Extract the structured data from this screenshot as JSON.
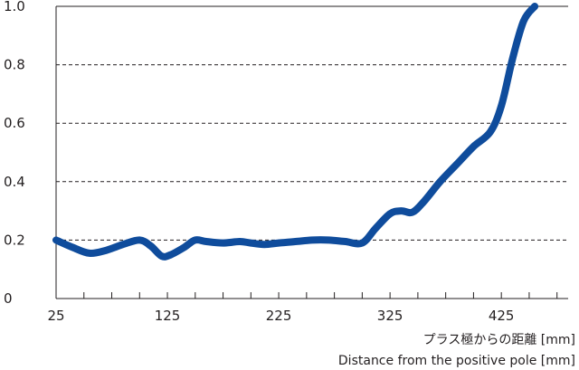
{
  "chart_data": {
    "type": "line",
    "xlabel_ja": "プラス極からの距離 [mm]",
    "xlabel_en": "Distance from the positive pole [mm]",
    "ylabel": "",
    "xlim": [
      25,
      485
    ],
    "ylim": [
      0,
      1.0
    ],
    "x_ticks": [
      25,
      125,
      225,
      325,
      425
    ],
    "x_minor_step": 25,
    "y_ticks": [
      0,
      0.2,
      0.4,
      0.6,
      0.8,
      1.0
    ],
    "y_tick_labels": [
      "0",
      "0.2",
      "0.4",
      "0.6",
      "0.8",
      "1.0"
    ],
    "grid": "y-dashed",
    "series": [
      {
        "color": "#0f4c9c",
        "x": [
          25,
          40,
          55,
          70,
          85,
          100,
          110,
          120,
          128,
          140,
          150,
          160,
          175,
          190,
          200,
          212,
          225,
          240,
          255,
          270,
          285,
          300,
          312,
          325,
          335,
          345,
          355,
          370,
          385,
          400,
          415,
          425,
          435,
          445,
          455
        ],
        "y": [
          0.2,
          0.175,
          0.155,
          0.165,
          0.185,
          0.2,
          0.18,
          0.145,
          0.15,
          0.175,
          0.2,
          0.195,
          0.19,
          0.195,
          0.19,
          0.185,
          0.19,
          0.195,
          0.2,
          0.2,
          0.195,
          0.19,
          0.24,
          0.29,
          0.3,
          0.295,
          0.33,
          0.4,
          0.46,
          0.52,
          0.57,
          0.66,
          0.82,
          0.95,
          1.0
        ]
      }
    ]
  }
}
